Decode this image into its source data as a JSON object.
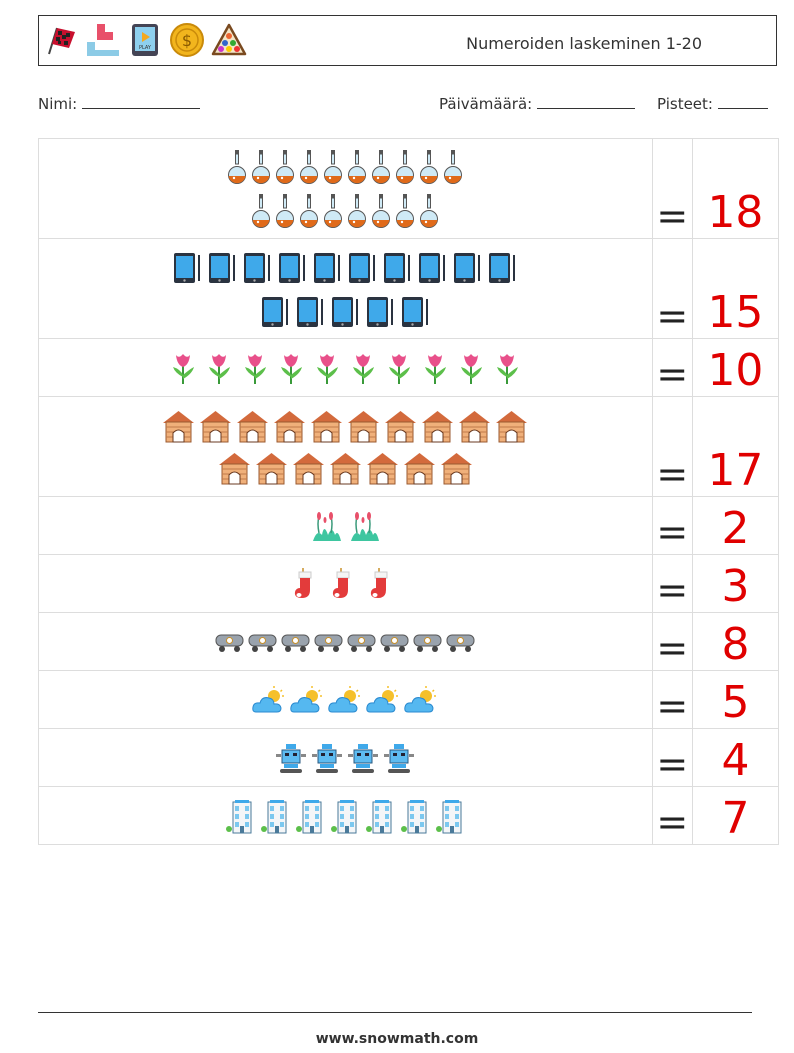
{
  "header": {
    "icons": [
      "racing-flag-icon",
      "tetromino-icon",
      "play-tablet-icon",
      "dollar-coin-icon",
      "billiard-triangle-icon"
    ],
    "title": "Numeroiden laskeminen 1-20"
  },
  "fields": {
    "name_label": "Nimi:",
    "date_label": "Päivämäärä:",
    "score_label": "Pisteet:"
  },
  "rows": [
    {
      "icon": "potion-flask-icon",
      "count": 18,
      "per_line": 10,
      "answer": "18"
    },
    {
      "icon": "tablet-icon",
      "count": 15,
      "per_line": 10,
      "answer": "15"
    },
    {
      "icon": "tulip-icon",
      "count": 10,
      "per_line": 10,
      "answer": "10"
    },
    {
      "icon": "dog-house-icon",
      "count": 17,
      "per_line": 10,
      "answer": "17"
    },
    {
      "icon": "grass-plant-icon",
      "count": 2,
      "per_line": 10,
      "answer": "2"
    },
    {
      "icon": "christmas-sock-icon",
      "count": 3,
      "per_line": 10,
      "answer": "3"
    },
    {
      "icon": "tank-car-icon",
      "count": 8,
      "per_line": 10,
      "answer": "8"
    },
    {
      "icon": "sun-cloud-icon",
      "count": 5,
      "per_line": 10,
      "answer": "5"
    },
    {
      "icon": "robot-icon",
      "count": 4,
      "per_line": 10,
      "answer": "4"
    },
    {
      "icon": "building-icon",
      "count": 7,
      "per_line": 10,
      "answer": "7"
    }
  ],
  "equals_sign": "=",
  "footer": {
    "site": "www.snowmath.com"
  }
}
